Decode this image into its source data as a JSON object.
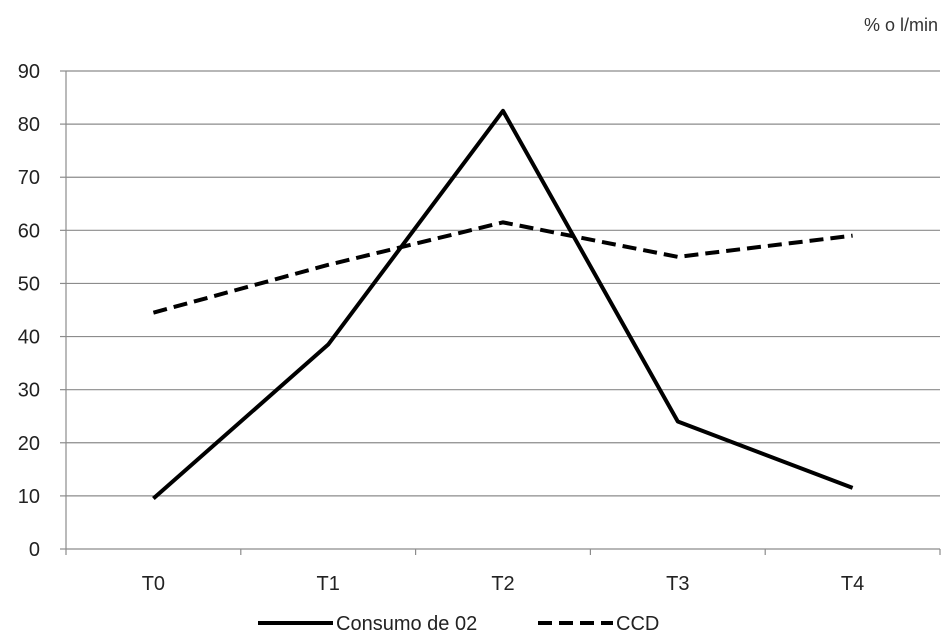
{
  "chart_data": {
    "type": "line",
    "unit_label": "% o l/min",
    "categories": [
      "T0",
      "T1",
      "T2",
      "T3",
      "T4"
    ],
    "ylim": [
      0,
      90
    ],
    "yticks": [
      0,
      10,
      20,
      30,
      40,
      50,
      60,
      70,
      80,
      90
    ],
    "grid": true,
    "legend_position": "bottom",
    "series": [
      {
        "name": "Consumo de 02",
        "values": [
          9.5,
          38.5,
          82.5,
          24,
          11.5
        ],
        "color": "#000000",
        "dash": "solid"
      },
      {
        "name": "CCD",
        "values": [
          44.5,
          53.5,
          61.5,
          55,
          59
        ],
        "color": "#000000",
        "dash": "dashed"
      }
    ]
  }
}
